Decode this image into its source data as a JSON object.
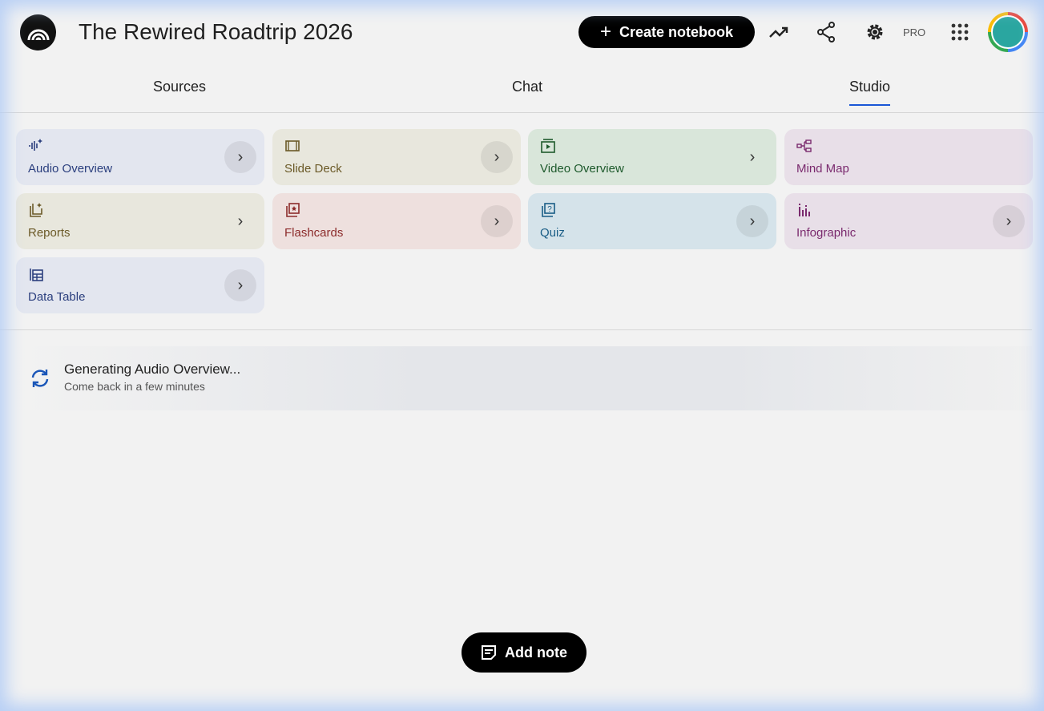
{
  "header": {
    "title": "The Rewired Roadtrip 2026",
    "create_label": "Create notebook",
    "pro_label": "PRO"
  },
  "tabs": [
    {
      "label": "Sources"
    },
    {
      "label": "Chat"
    },
    {
      "label": "Studio",
      "active": true
    }
  ],
  "studio": {
    "cards": [
      {
        "label": "Audio Overview",
        "icon": "audio-waveform-sparkle-icon",
        "bg": "#e3e6ef",
        "color": "#2b3f7e"
      },
      {
        "label": "Slide Deck",
        "icon": "slides-icon",
        "bg": "#e8e7dd",
        "color": "#6b5a28"
      },
      {
        "label": "Video Overview",
        "icon": "video-icon",
        "bg": "#d9e6da",
        "color": "#1e5a2c"
      },
      {
        "label": "Mind Map",
        "icon": "mind-map-icon",
        "bg": "#e8dfe8",
        "color": "#7a2a6e"
      },
      {
        "label": "Reports",
        "icon": "reports-icon",
        "bg": "#e8e7dd",
        "color": "#6b5a28"
      },
      {
        "label": "Flashcards",
        "icon": "flashcards-icon",
        "bg": "#eee0de",
        "color": "#8c2b2b"
      },
      {
        "label": "Quiz",
        "icon": "quiz-icon",
        "bg": "#d5e3ea",
        "color": "#1a5d86"
      },
      {
        "label": "Infographic",
        "icon": "infographic-icon",
        "bg": "#e8dfe8",
        "color": "#7a2a6e"
      },
      {
        "label": "Data Table",
        "icon": "data-table-icon",
        "bg": "#e3e6ef",
        "color": "#2b3f7e"
      }
    ]
  },
  "generating": {
    "title": "Generating Audio Overview...",
    "subtitle": "Come back in a few minutes"
  },
  "add_note_label": "Add note"
}
